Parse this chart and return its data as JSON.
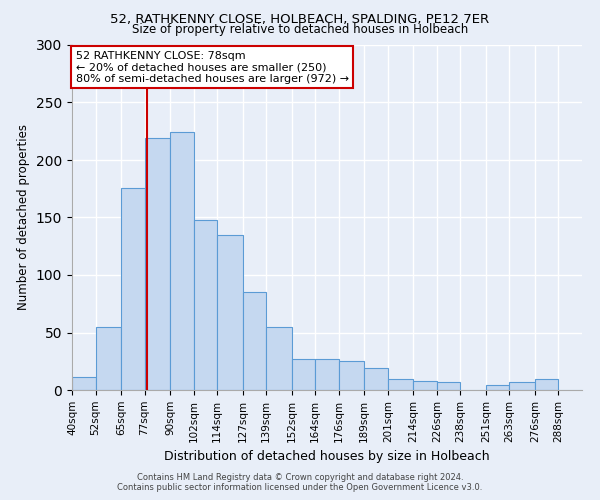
{
  "title1": "52, RATHKENNY CLOSE, HOLBEACH, SPALDING, PE12 7ER",
  "title2": "Size of property relative to detached houses in Holbeach",
  "xlabel": "Distribution of detached houses by size in Holbeach",
  "ylabel": "Number of detached properties",
  "bar_labels": [
    "40sqm",
    "52sqm",
    "65sqm",
    "77sqm",
    "90sqm",
    "102sqm",
    "114sqm",
    "127sqm",
    "139sqm",
    "152sqm",
    "164sqm",
    "176sqm",
    "189sqm",
    "201sqm",
    "214sqm",
    "226sqm",
    "238sqm",
    "251sqm",
    "263sqm",
    "276sqm",
    "288sqm"
  ],
  "bar_values": [
    11,
    55,
    176,
    219,
    224,
    148,
    135,
    85,
    55,
    27,
    27,
    25,
    19,
    10,
    8,
    7,
    0,
    4,
    7,
    10,
    0
  ],
  "bin_edges": [
    40,
    52,
    65,
    77,
    90,
    102,
    114,
    127,
    139,
    152,
    164,
    176,
    189,
    201,
    214,
    226,
    238,
    251,
    263,
    276,
    288,
    300
  ],
  "bar_color": "#c5d8f0",
  "bar_edge_color": "#5b9bd5",
  "vline_x": 78,
  "vline_color": "#cc0000",
  "ylim": [
    0,
    300
  ],
  "yticks": [
    0,
    50,
    100,
    150,
    200,
    250,
    300
  ],
  "annotation_title": "52 RATHKENNY CLOSE: 78sqm",
  "annotation_line1": "← 20% of detached houses are smaller (250)",
  "annotation_line2": "80% of semi-detached houses are larger (972) →",
  "annotation_box_color": "#ffffff",
  "annotation_box_edge_color": "#cc0000",
  "footer1": "Contains HM Land Registry data © Crown copyright and database right 2024.",
  "footer2": "Contains public sector information licensed under the Open Government Licence v3.0.",
  "background_color": "#e8eef8",
  "grid_color": "#ffffff"
}
